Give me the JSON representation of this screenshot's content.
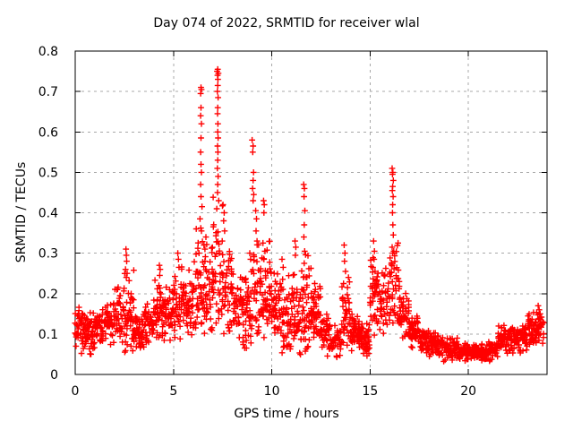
{
  "chart_data": {
    "type": "scatter",
    "title": "Day 074 of 2022, SRMTID for receiver wlal",
    "xlabel": "GPS time / hours",
    "ylabel": "SRMTID / TECUs",
    "xlim": [
      0,
      24
    ],
    "ylim": [
      0,
      0.8
    ],
    "xtick_values": [
      0,
      5,
      10,
      15,
      20
    ],
    "xtick_labels": [
      "0",
      "5",
      "10",
      "15",
      "20"
    ],
    "ytick_values": [
      0,
      0.1,
      0.2,
      0.3,
      0.4,
      0.5,
      0.6,
      0.7,
      0.8
    ],
    "ytick_labels": [
      "0",
      "0.1",
      "0.2",
      "0.3",
      "0.4",
      "0.5",
      "0.6",
      "0.7",
      "0.8"
    ],
    "grid": true,
    "legend": null,
    "marker": "plus",
    "colors": {
      "points": "#ff0000",
      "grid": "#a8a8a8",
      "axis": "#000000",
      "background": "#ffffff",
      "text": "#000000"
    },
    "band_bin_format": [
      "x_start_hours",
      "y_min_TECUs",
      "y_max_TECUs",
      "approx_point_count",
      "optional_bin_width_hours"
    ],
    "band_envelope_bins": [
      [
        0.0,
        0.05,
        0.17,
        44
      ],
      [
        0.5,
        0.04,
        0.16,
        44
      ],
      [
        1.0,
        0.06,
        0.17,
        44
      ],
      [
        1.5,
        0.06,
        0.19,
        44
      ],
      [
        2.0,
        0.07,
        0.23,
        44
      ],
      [
        2.5,
        0.04,
        0.27,
        44
      ],
      [
        3.0,
        0.04,
        0.16,
        44
      ],
      [
        3.5,
        0.07,
        0.19,
        44
      ],
      [
        4.0,
        0.07,
        0.25,
        44
      ],
      [
        4.5,
        0.07,
        0.23,
        44
      ],
      [
        5.0,
        0.08,
        0.28,
        44
      ],
      [
        5.5,
        0.08,
        0.26,
        44
      ],
      [
        6.0,
        0.1,
        0.42,
        44
      ],
      [
        6.5,
        0.1,
        0.36,
        44
      ],
      [
        7.0,
        0.12,
        0.46,
        44
      ],
      [
        7.5,
        0.1,
        0.4,
        44
      ],
      [
        8.0,
        0.09,
        0.26,
        44
      ],
      [
        8.5,
        0.05,
        0.3,
        44
      ],
      [
        9.0,
        0.08,
        0.4,
        44
      ],
      [
        9.5,
        0.09,
        0.36,
        44
      ],
      [
        10.0,
        0.08,
        0.26,
        44
      ],
      [
        10.5,
        0.05,
        0.27,
        44
      ],
      [
        11.0,
        0.03,
        0.3,
        44
      ],
      [
        11.5,
        0.05,
        0.33,
        44
      ],
      [
        12.0,
        0.08,
        0.23,
        44
      ],
      [
        12.5,
        0.04,
        0.16,
        44
      ],
      [
        13.0,
        0.03,
        0.13,
        44
      ],
      [
        13.5,
        0.05,
        0.24,
        44
      ],
      [
        14.0,
        0.05,
        0.16,
        44
      ],
      [
        14.5,
        0.04,
        0.14,
        44
      ],
      [
        15.0,
        0.08,
        0.3,
        44
      ],
      [
        15.5,
        0.1,
        0.28,
        44
      ],
      [
        16.0,
        0.12,
        0.36,
        44
      ],
      [
        16.5,
        0.08,
        0.21,
        44
      ],
      [
        17.0,
        0.06,
        0.16,
        44
      ],
      [
        17.5,
        0.04,
        0.12,
        44
      ],
      [
        18.0,
        0.04,
        0.11,
        44
      ],
      [
        18.5,
        0.03,
        0.1,
        44
      ],
      [
        19.0,
        0.03,
        0.1,
        44
      ],
      [
        19.5,
        0.03,
        0.08,
        44
      ],
      [
        20.0,
        0.03,
        0.08,
        44
      ],
      [
        20.5,
        0.03,
        0.08,
        44
      ],
      [
        21.0,
        0.03,
        0.09,
        44
      ],
      [
        21.5,
        0.04,
        0.13,
        44
      ],
      [
        22.0,
        0.05,
        0.12,
        44
      ],
      [
        22.5,
        0.05,
        0.13,
        44
      ],
      [
        23.0,
        0.06,
        0.16,
        44
      ],
      [
        23.5,
        0.07,
        0.16,
        28,
        0.35
      ]
    ],
    "spike_points": [
      [
        2.56,
        0.26
      ],
      [
        2.58,
        0.31
      ],
      [
        2.6,
        0.295
      ],
      [
        2.62,
        0.28
      ],
      [
        2.6,
        0.24
      ],
      [
        2.64,
        0.25
      ],
      [
        4.28,
        0.27
      ],
      [
        4.32,
        0.26
      ],
      [
        4.3,
        0.245
      ],
      [
        5.22,
        0.3
      ],
      [
        5.25,
        0.285
      ],
      [
        5.28,
        0.265
      ],
      [
        6.38,
        0.695
      ],
      [
        6.42,
        0.705
      ],
      [
        6.4,
        0.71
      ],
      [
        6.4,
        0.66
      ],
      [
        6.38,
        0.64
      ],
      [
        6.42,
        0.62
      ],
      [
        6.4,
        0.585
      ],
      [
        6.38,
        0.55
      ],
      [
        6.4,
        0.52
      ],
      [
        6.42,
        0.5
      ],
      [
        6.38,
        0.47
      ],
      [
        6.4,
        0.44
      ],
      [
        6.45,
        0.415
      ],
      [
        6.35,
        0.385
      ],
      [
        6.42,
        0.355
      ],
      [
        6.3,
        0.3
      ],
      [
        6.55,
        0.32
      ],
      [
        6.65,
        0.34
      ],
      [
        6.6,
        0.31
      ],
      [
        7.22,
        0.75
      ],
      [
        7.25,
        0.755
      ],
      [
        7.28,
        0.745
      ],
      [
        7.24,
        0.74
      ],
      [
        7.26,
        0.73
      ],
      [
        7.25,
        0.715
      ],
      [
        7.23,
        0.7
      ],
      [
        7.27,
        0.685
      ],
      [
        7.25,
        0.66
      ],
      [
        7.24,
        0.645
      ],
      [
        7.26,
        0.62
      ],
      [
        7.25,
        0.6
      ],
      [
        7.27,
        0.585
      ],
      [
        7.24,
        0.565
      ],
      [
        7.26,
        0.55
      ],
      [
        7.25,
        0.53
      ],
      [
        7.23,
        0.51
      ],
      [
        7.27,
        0.49
      ],
      [
        7.25,
        0.47
      ],
      [
        7.24,
        0.45
      ],
      [
        7.3,
        0.43
      ],
      [
        7.2,
        0.41
      ],
      [
        7.52,
        0.42
      ],
      [
        7.58,
        0.4
      ],
      [
        7.55,
        0.38
      ],
      [
        7.6,
        0.355
      ],
      [
        7.48,
        0.33
      ],
      [
        8.88,
        0.3
      ],
      [
        8.92,
        0.285
      ],
      [
        9.0,
        0.58
      ],
      [
        9.05,
        0.565
      ],
      [
        9.03,
        0.55
      ],
      [
        9.07,
        0.5
      ],
      [
        9.05,
        0.48
      ],
      [
        9.02,
        0.46
      ],
      [
        9.08,
        0.445
      ],
      [
        9.05,
        0.43
      ],
      [
        9.18,
        0.405
      ],
      [
        9.22,
        0.385
      ],
      [
        9.2,
        0.355
      ],
      [
        9.25,
        0.33
      ],
      [
        9.58,
        0.43
      ],
      [
        9.62,
        0.42
      ],
      [
        9.6,
        0.4
      ],
      [
        9.55,
        0.325
      ],
      [
        9.65,
        0.305
      ],
      [
        9.6,
        0.285
      ],
      [
        10.12,
        0.25
      ],
      [
        10.18,
        0.23
      ],
      [
        10.52,
        0.285
      ],
      [
        10.58,
        0.265
      ],
      [
        11.18,
        0.33
      ],
      [
        11.22,
        0.315
      ],
      [
        11.2,
        0.295
      ],
      [
        11.62,
        0.47
      ],
      [
        11.66,
        0.46
      ],
      [
        11.64,
        0.44
      ],
      [
        11.68,
        0.405
      ],
      [
        11.65,
        0.37
      ],
      [
        11.63,
        0.34
      ],
      [
        11.67,
        0.305
      ],
      [
        11.65,
        0.275
      ],
      [
        12.18,
        0.225
      ],
      [
        12.22,
        0.21
      ],
      [
        13.68,
        0.32
      ],
      [
        13.72,
        0.3
      ],
      [
        13.7,
        0.28
      ],
      [
        13.75,
        0.255
      ],
      [
        13.65,
        0.225
      ],
      [
        13.9,
        0.24
      ],
      [
        13.85,
        0.215
      ],
      [
        15.18,
        0.33
      ],
      [
        15.22,
        0.305
      ],
      [
        15.2,
        0.285
      ],
      [
        15.25,
        0.255
      ],
      [
        15.15,
        0.225
      ],
      [
        16.12,
        0.51
      ],
      [
        16.16,
        0.5
      ],
      [
        16.14,
        0.495
      ],
      [
        16.18,
        0.48
      ],
      [
        16.15,
        0.465
      ],
      [
        16.13,
        0.455
      ],
      [
        16.17,
        0.44
      ],
      [
        16.15,
        0.42
      ],
      [
        16.14,
        0.4
      ],
      [
        16.16,
        0.37
      ],
      [
        16.18,
        0.345
      ],
      [
        16.12,
        0.315
      ],
      [
        16.15,
        0.3
      ],
      [
        23.55,
        0.17
      ],
      [
        23.6,
        0.16
      ],
      [
        23.65,
        0.15
      ]
    ]
  }
}
